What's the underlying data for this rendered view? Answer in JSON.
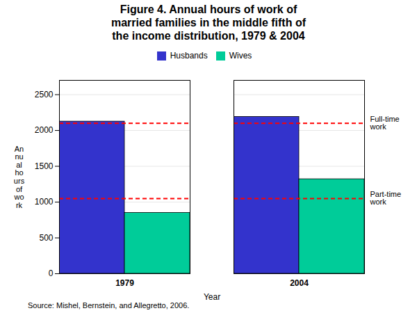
{
  "chart_data": {
    "type": "bar",
    "title": "Figure 4. Annual hours of work of\nmarried families in the middle fifth of\nthe income distribution, 1979 & 2004",
    "x_label": "Year",
    "y_label": "An\nnu\nal\nho\nurs\nof\nwo\nrk",
    "categories": [
      "1979",
      "2004"
    ],
    "series": [
      {
        "name": "Husbands",
        "color": "#3333cc",
        "values": [
          2125,
          2190
        ]
      },
      {
        "name": "Wives",
        "color": "#00cc99",
        "values": [
          850,
          1320
        ]
      }
    ],
    "ylim": [
      0,
      2700
    ],
    "yticks": [
      0,
      500,
      1000,
      1500,
      2000,
      2500
    ],
    "grid": true,
    "legend": "top",
    "reference_lines": [
      {
        "y": 2100,
        "label": "Full-time\nwork",
        "color": "#ff0000",
        "line_style": "dashed"
      },
      {
        "y": 1050,
        "label": "Part-time\nwork",
        "color": "#ff0000",
        "line_style": "dashed"
      }
    ],
    "source": "Source: Mishel, Bernstein, and Allegretto, 2006."
  }
}
